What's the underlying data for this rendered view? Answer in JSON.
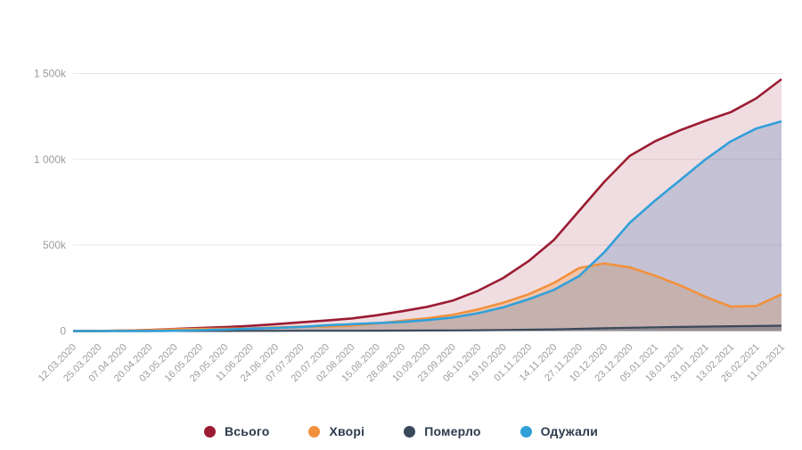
{
  "chart_data": {
    "type": "area",
    "title": "",
    "xlabel": "",
    "ylabel": "",
    "unit": "people",
    "grid": "horizontal",
    "legend_position": "bottom",
    "ylim": [
      0,
      1500000
    ],
    "y_ticks": [
      {
        "value": 0,
        "label": "0"
      },
      {
        "value": 500000,
        "label": "500k"
      },
      {
        "value": 1000000,
        "label": "1 000k"
      },
      {
        "value": 1500000,
        "label": "1 500k"
      }
    ],
    "x": [
      "12.03.2020",
      "25.03.2020",
      "07.04.2020",
      "20.04.2020",
      "03.05.2020",
      "16.05.2020",
      "29.05.2020",
      "11.06.2020",
      "24.06.2020",
      "07.07.2020",
      "20.07.2020",
      "02.08.2020",
      "15.08.2020",
      "28.08.2020",
      "10.09.2020",
      "23.09.2020",
      "06.10.2020",
      "19.10.2020",
      "01.11.2020",
      "14.11.2020",
      "27.11.2020",
      "10.12.2020",
      "23.12.2020",
      "05.01.2021",
      "18.01.2021",
      "31.01.2021",
      "13.02.2021",
      "26.02.2021",
      "11.03.2021"
    ],
    "series": [
      {
        "key": "total",
        "name": "Всього",
        "color": "#9b1c33",
        "fill": "rgba(155,28,51,0.15)",
        "values": [
          300,
          400,
          2000,
          6000,
          12000,
          18000,
          23000,
          30000,
          40000,
          51000,
          61000,
          73000,
          92000,
          115000,
          141000,
          177000,
          234000,
          309000,
          407000,
          530000,
          700000,
          870000,
          1020000,
          1105000,
          1170000,
          1225000,
          1275000,
          1355000,
          1467000
        ]
      },
      {
        "key": "sick",
        "name": "Хворі",
        "color": "#f2913c",
        "fill": "rgba(243,146,60,0.33)",
        "values": [
          300,
          300,
          1900,
          5400,
          10000,
          12500,
          13300,
          15200,
          21000,
          25700,
          26500,
          31200,
          43900,
          59600,
          74000,
          94500,
          125500,
          165000,
          214000,
          280000,
          367000,
          394000,
          371000,
          323000,
          266000,
          199000,
          142000,
          146000,
          214000
        ]
      },
      {
        "key": "died",
        "name": "Померло",
        "color": "#3a495b",
        "fill": "rgba(58,73,91,0.35)",
        "values": [
          0,
          100,
          100,
          200,
          300,
          500,
          700,
          900,
          1000,
          1300,
          1500,
          1800,
          2100,
          2400,
          3000,
          3500,
          4500,
          6000,
          8000,
          10000,
          13000,
          16000,
          19000,
          22000,
          24000,
          26000,
          28000,
          29000,
          31000
        ]
      },
      {
        "key": "recovered",
        "name": "Одужали",
        "color": "#31a0d9",
        "fill": "rgba(96,133,183,0.30)",
        "values": [
          0,
          0,
          0,
          400,
          1700,
          5000,
          9000,
          14000,
          18000,
          24000,
          33000,
          40000,
          46000,
          53000,
          64000,
          79000,
          104000,
          138000,
          185000,
          240000,
          320000,
          460000,
          630000,
          760000,
          880000,
          1000000,
          1105000,
          1180000,
          1222000
        ]
      }
    ]
  }
}
